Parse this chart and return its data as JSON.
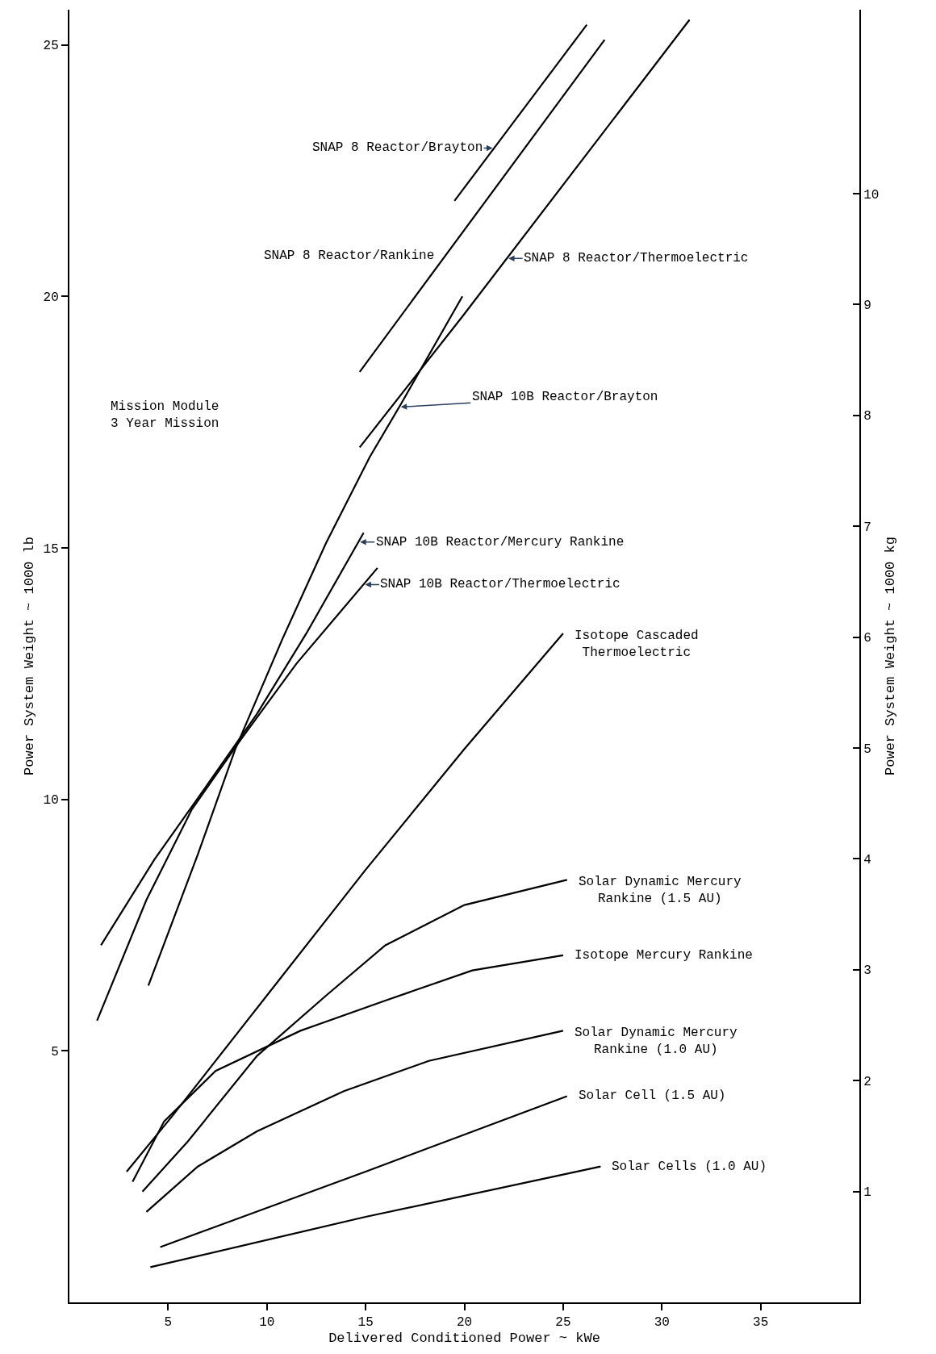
{
  "chart_data": {
    "type": "line",
    "xlabel": "Delivered Conditioned Power ~ kWe",
    "ylabel": "Power System Weight ~ 1000 lb",
    "y2label": "Power System Weight ~ 1000 kg",
    "xlim": [
      0,
      40
    ],
    "xticks": [
      5,
      10,
      15,
      20,
      25,
      30,
      35
    ],
    "ylim": [
      0,
      25.7
    ],
    "yticks": [
      5,
      10,
      15,
      20,
      25
    ],
    "y2lim": [
      0,
      11.66
    ],
    "y2ticks": [
      1,
      2,
      3,
      4,
      5,
      6,
      7,
      8,
      9,
      10
    ],
    "grid": false,
    "legend": false,
    "marker": "none",
    "line_style": "solid",
    "annotations": [
      "Mission Module\n3 Year Mission"
    ],
    "series": [
      {
        "name": "SNAP 8 Reactor/Brayton",
        "color": "#000000",
        "x": [
          19.5,
          26.2
        ],
        "values": [
          21.9,
          25.4
        ]
      },
      {
        "name": "SNAP 8 Reactor/Rankine",
        "color": "#000000",
        "x": [
          14.7,
          27.1
        ],
        "values": [
          18.5,
          25.1
        ]
      },
      {
        "name": "SNAP 8 Reactor/Thermoelectric",
        "color": "#000000",
        "x": [
          14.7,
          19.9,
          31.4
        ],
        "values": [
          17.0,
          19.6,
          25.5
        ]
      },
      {
        "name": "SNAP 10B Reactor/Brayton",
        "color": "#000000",
        "x": [
          4.0,
          6.5,
          8.4,
          10.8,
          13.0,
          15.2,
          16.7,
          19.9
        ],
        "values": [
          6.3,
          8.9,
          11.0,
          13.2,
          15.1,
          16.8,
          17.8,
          20.0
        ]
      },
      {
        "name": "SNAP 10B Reactor/Mercury Rankine",
        "color": "#000000",
        "x": [
          1.6,
          4.3,
          7.0,
          9.5,
          12.0,
          14.9
        ],
        "values": [
          7.1,
          8.8,
          10.3,
          11.7,
          13.3,
          15.3
        ]
      },
      {
        "name": "SNAP 10B Reactor/Thermoelectric",
        "color": "#000000",
        "x": [
          1.4,
          3.9,
          6.2,
          8.7,
          11.5,
          15.6
        ],
        "values": [
          5.6,
          8.0,
          9.8,
          11.2,
          12.7,
          14.6
        ]
      },
      {
        "name": "Isotope Cascaded\nThermoelectric",
        "color": "#000000",
        "x": [
          2.9,
          5.2,
          10.0,
          15.0,
          20.0,
          25.0
        ],
        "values": [
          2.6,
          3.7,
          6.1,
          8.6,
          11.0,
          13.3
        ]
      },
      {
        "name": "Solar Dynamic Mercury\nRankine (1.5 AU)",
        "color": "#000000",
        "x": [
          3.7,
          6.0,
          9.5,
          13.0,
          16.0,
          20.0,
          25.2
        ],
        "values": [
          2.2,
          3.2,
          4.9,
          6.1,
          7.1,
          7.9,
          8.4
        ]
      },
      {
        "name": "Isotope Mercury Rankine",
        "color": "#000000",
        "x": [
          3.2,
          4.8,
          7.4,
          11.7,
          16.0,
          20.4,
          25.0
        ],
        "values": [
          2.4,
          3.6,
          4.6,
          5.4,
          6.0,
          6.6,
          6.9
        ]
      },
      {
        "name": "Solar Dynamic Mercury\nRankine (1.0 AU)",
        "color": "#000000",
        "x": [
          3.9,
          6.5,
          9.5,
          13.9,
          18.2,
          25.0
        ],
        "values": [
          1.8,
          2.7,
          3.4,
          4.2,
          4.8,
          5.4
        ]
      },
      {
        "name": "Solar Cell (1.5 AU)",
        "color": "#000000",
        "x": [
          4.6,
          15.0,
          25.2
        ],
        "values": [
          1.1,
          2.6,
          4.1
        ]
      },
      {
        "name": "Solar Cells (1.0 AU)",
        "color": "#000000",
        "x": [
          4.1,
          15.0,
          26.9
        ],
        "values": [
          0.7,
          1.7,
          2.7
        ]
      }
    ]
  }
}
